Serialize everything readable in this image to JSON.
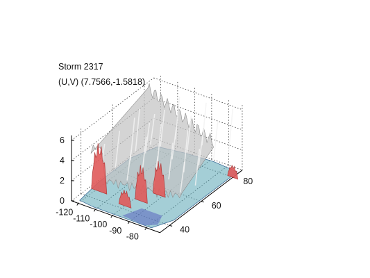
{
  "chart_data": {
    "type": "surface",
    "title": [
      "Storm 2317",
      "(U,V) (7.7566,-1.5818)"
    ],
    "x_ticks": [
      -120,
      -110,
      -100,
      -90,
      -80
    ],
    "y_ticks": [
      40,
      60,
      80
    ],
    "z_ticks": [
      0,
      2,
      4,
      6
    ],
    "xlim": [
      -124,
      -72
    ],
    "ylim": [
      34,
      86
    ],
    "zlim": [
      0,
      6.5
    ],
    "grid": true,
    "view": "3d-perspective",
    "isosurfaces": [
      {
        "level": "outer",
        "color": "#c8c8c8"
      },
      {
        "level": "inner",
        "color": "#e06464"
      },
      {
        "level": "base",
        "color": "#4fb0b0"
      }
    ],
    "peaks": [
      {
        "x": -118,
        "y": 45,
        "z": 4.8
      },
      {
        "x": -96,
        "y": 48,
        "z": 3.6
      },
      {
        "x": -92,
        "y": 55,
        "z": 3.4
      },
      {
        "x": -100,
        "y": 42,
        "z": 1.6
      },
      {
        "x": -72,
        "y": 80,
        "z": 1.2
      }
    ]
  }
}
